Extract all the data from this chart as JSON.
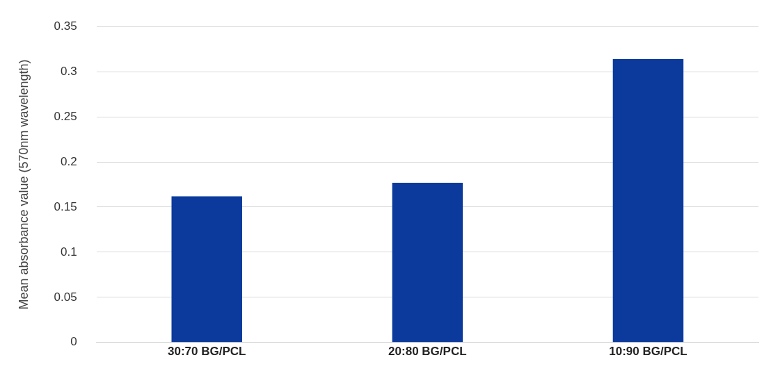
{
  "chart_data": {
    "type": "bar",
    "categories": [
      "30:70 BG/PCL",
      "20:80 BG/PCL",
      "10:90 BG/PCL"
    ],
    "values": [
      0.162,
      0.177,
      0.314
    ],
    "color": "#0b3a9c",
    "ylabel": "Mean absorbance value (570nm wavelength)",
    "ylim": [
      0,
      0.35
    ],
    "yticks": [
      0,
      0.05,
      0.1,
      0.15,
      0.2,
      0.25,
      0.3,
      0.35
    ],
    "grid": "y",
    "legend": false
  }
}
